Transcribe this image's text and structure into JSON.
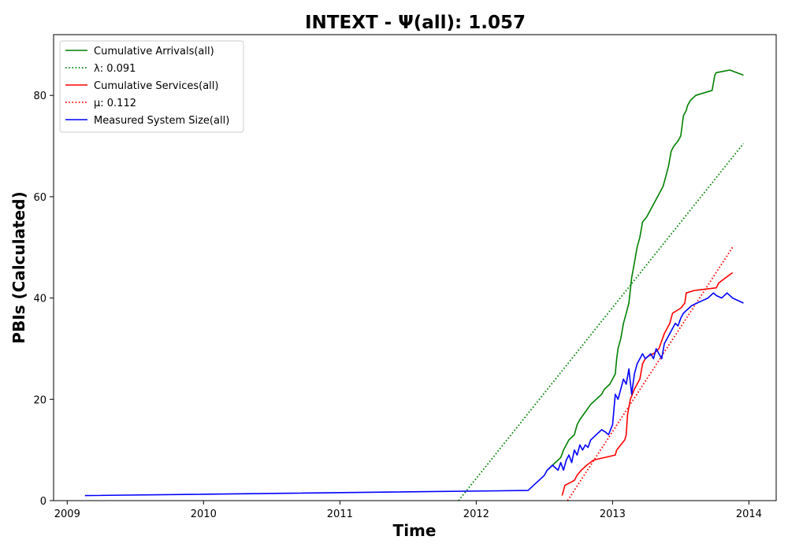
{
  "chart_data": {
    "type": "line",
    "title": "INTEXT -  Ψ(all): 1.057",
    "xlabel": "Time",
    "ylabel": "PBIs (Calculated)",
    "xlim": [
      2008.9,
      2014.2
    ],
    "ylim": [
      0,
      92
    ],
    "x_ticks": [
      2009,
      2010,
      2011,
      2012,
      2013,
      2014
    ],
    "x_tick_labels": [
      "2009",
      "2010",
      "2011",
      "2012",
      "2013",
      "2014"
    ],
    "y_ticks": [
      0,
      20,
      40,
      60,
      80
    ],
    "y_tick_labels": [
      "0",
      "20",
      "40",
      "60",
      "80"
    ],
    "grid": false,
    "legend_position": "top-left",
    "series": [
      {
        "name": "Cumulative Arrivals(all)",
        "color": "#008000",
        "style": "solid",
        "x": [
          2012.52,
          2012.56,
          2012.62,
          2012.64,
          2012.66,
          2012.68,
          2012.72,
          2012.74,
          2012.76,
          2012.8,
          2012.84,
          2012.88,
          2012.92,
          2012.94,
          2012.98,
          2013.02,
          2013.03,
          2013.04,
          2013.06,
          2013.08,
          2013.1,
          2013.12,
          2013.14,
          2013.16,
          2013.18,
          2013.2,
          2013.22,
          2013.25,
          2013.27,
          2013.37,
          2013.39,
          2013.41,
          2013.43,
          2013.45,
          2013.48,
          2013.5,
          2013.52,
          2013.54,
          2013.55,
          2013.57,
          2013.59,
          2013.61,
          2013.73,
          2013.75,
          2013.76,
          2013.86,
          2013.96
        ],
        "y": [
          6,
          7,
          8.5,
          10,
          11,
          12,
          13,
          15,
          16,
          17.5,
          19,
          20,
          21,
          22,
          23,
          25,
          28,
          30,
          32,
          35,
          37,
          39,
          44,
          47,
          50,
          52,
          55,
          56,
          57,
          62,
          64,
          66,
          69,
          70,
          71,
          72,
          76,
          77,
          78,
          79,
          79.5,
          80,
          81,
          84,
          84.5,
          85,
          84
        ]
      },
      {
        "name": "λ: 0.091",
        "color": "#008000",
        "style": "dotted",
        "x": [
          2011.87,
          2013.96
        ],
        "y": [
          0,
          70.5
        ]
      },
      {
        "name": "Cumulative Services(all)",
        "color": "#ff0000",
        "style": "solid",
        "x": [
          2012.63,
          2012.65,
          2012.72,
          2012.74,
          2012.77,
          2012.81,
          2012.86,
          2013.02,
          2013.03,
          2013.09,
          2013.1,
          2013.11,
          2013.13,
          2013.16,
          2013.18,
          2013.2,
          2013.22,
          2013.24,
          2013.26,
          2013.3,
          2013.34,
          2013.38,
          2013.42,
          2013.44,
          2013.5,
          2013.53,
          2013.54,
          2013.6,
          2013.76,
          2013.78,
          2013.88
        ],
        "y": [
          1,
          3,
          4,
          5,
          6,
          7,
          8,
          9,
          10,
          12,
          13,
          17,
          20,
          22,
          23,
          24,
          27,
          28,
          28.5,
          29,
          30,
          33,
          35,
          37,
          38,
          39,
          41,
          41.5,
          42,
          43,
          45
        ]
      },
      {
        "name": "μ: 0.112",
        "color": "#ff0000",
        "style": "dotted",
        "x": [
          2012.67,
          2013.88
        ],
        "y": [
          0,
          50
        ]
      },
      {
        "name": "Measured System Size(all)",
        "color": "#0000ff",
        "style": "solid",
        "x": [
          2009.13,
          2012.38,
          2012.42,
          2012.46,
          2012.5,
          2012.52,
          2012.56,
          2012.6,
          2012.62,
          2012.64,
          2012.66,
          2012.68,
          2012.7,
          2012.72,
          2012.74,
          2012.76,
          2012.78,
          2012.8,
          2012.82,
          2012.84,
          2012.86,
          2012.88,
          2012.9,
          2012.92,
          2012.95,
          2012.97,
          2013.0,
          2013.02,
          2013.04,
          2013.06,
          2013.08,
          2013.1,
          2013.12,
          2013.14,
          2013.15,
          2013.16,
          2013.18,
          2013.2,
          2013.22,
          2013.24,
          2013.26,
          2013.28,
          2013.3,
          2013.32,
          2013.36,
          2013.38,
          2013.4,
          2013.42,
          2013.44,
          2013.46,
          2013.48,
          2013.5,
          2013.52,
          2013.54,
          2013.56,
          2013.58,
          2013.62,
          2013.66,
          2013.7,
          2013.74,
          2013.76,
          2013.8,
          2013.84,
          2013.88,
          2013.96
        ],
        "y": [
          1,
          2,
          3,
          4,
          5,
          6,
          7,
          6,
          7.5,
          6,
          8,
          9,
          7.5,
          10,
          9,
          11,
          10,
          11,
          10.5,
          12,
          12.5,
          13,
          13.5,
          14,
          13.5,
          13,
          15,
          21,
          20,
          22,
          24,
          23,
          26,
          21,
          23,
          25,
          27,
          28,
          29,
          28,
          28.5,
          29,
          28,
          30,
          28,
          31,
          32,
          33,
          34,
          35,
          34.5,
          36,
          37,
          37.5,
          38,
          38.5,
          39,
          39.5,
          40,
          41,
          40.5,
          40,
          41,
          40,
          39
        ]
      }
    ]
  }
}
